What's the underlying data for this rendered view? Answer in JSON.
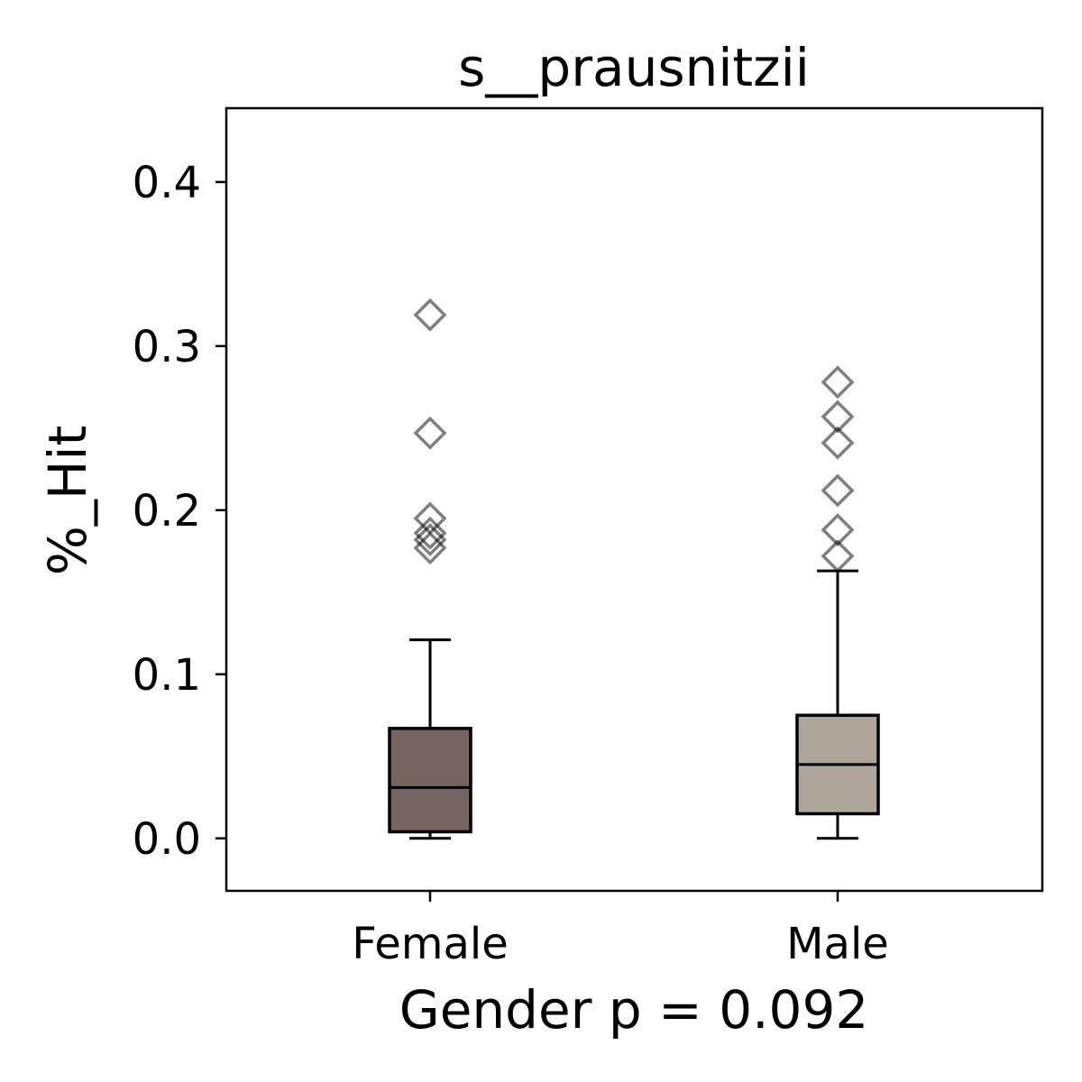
{
  "chart_data": {
    "type": "box",
    "title": "s__prausnitzii",
    "xlabel": "Gender p = 0.092",
    "ylabel": "%_Hit",
    "ylim": [
      -0.032,
      0.445
    ],
    "yticks": [
      0.0,
      0.1,
      0.2,
      0.3,
      0.4
    ],
    "ytick_labels": [
      "0.0",
      "0.1",
      "0.2",
      "0.3",
      "0.4"
    ],
    "categories": [
      "Female",
      "Male"
    ],
    "grid": false,
    "boxes": [
      {
        "name": "Female",
        "color": "#766460",
        "whisker_low": 0.0,
        "q1": 0.004,
        "median": 0.031,
        "q3": 0.067,
        "whisker_high": 0.121,
        "outliers": [
          0.177,
          0.182,
          0.186,
          0.195,
          0.247,
          0.319
        ]
      },
      {
        "name": "Male",
        "color": "#b0a59b",
        "whisker_low": 0.0,
        "q1": 0.015,
        "median": 0.045,
        "q3": 0.075,
        "whisker_high": 0.163,
        "outliers": [
          0.172,
          0.188,
          0.212,
          0.241,
          0.257,
          0.278
        ]
      }
    ],
    "outlier_marker": "diamond"
  }
}
